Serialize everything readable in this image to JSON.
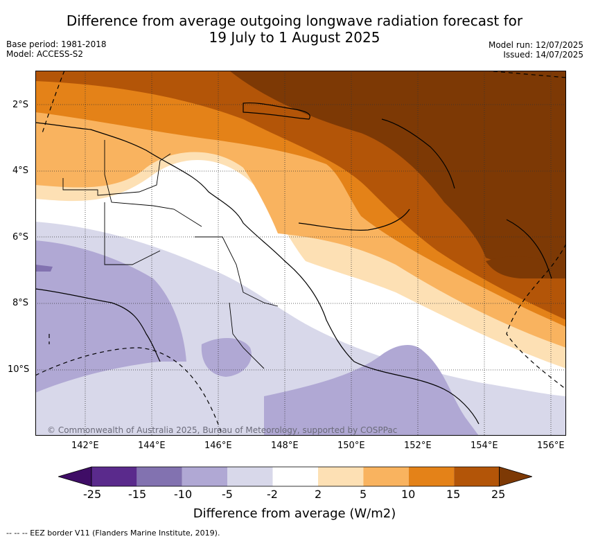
{
  "header": {
    "title_line1": "Difference from average outgoing longwave radiation forecast for",
    "title_line2": "19 July to 1 August 2025",
    "base_period": "Base period: 1981-2018",
    "model": "Model: ACCESS-S2",
    "model_run": "Model run: 12/07/2025",
    "issued": "Issued: 14/07/2025"
  },
  "map": {
    "lat_labels": [
      "2°S",
      "4°S",
      "6°S",
      "8°S",
      "10°S"
    ],
    "lon_labels": [
      "142°E",
      "144°E",
      "146°E",
      "148°E",
      "150°E",
      "152°E",
      "154°E",
      "156°E"
    ],
    "copyright": "© Commonwealth of Australia 2025, Bureau of Meteorology, supported by COSPPac"
  },
  "colorbar": {
    "ticks": [
      "-25",
      "-15",
      "-10",
      "-5",
      "-2",
      "2",
      "5",
      "10",
      "15",
      "25"
    ],
    "colors": [
      "#3f0d66",
      "#5a2a8c",
      "#8272b0",
      "#b0a8d4",
      "#d8d8ea",
      "#ffffff",
      "#fde0b4",
      "#f9b35f",
      "#e48218",
      "#b35508",
      "#7d3905"
    ],
    "label": "Difference from average (W/m2)"
  },
  "legend": {
    "eez_text": "--  --  -- EEZ border V11 (Flanders Marine Institute, 2019)."
  }
}
